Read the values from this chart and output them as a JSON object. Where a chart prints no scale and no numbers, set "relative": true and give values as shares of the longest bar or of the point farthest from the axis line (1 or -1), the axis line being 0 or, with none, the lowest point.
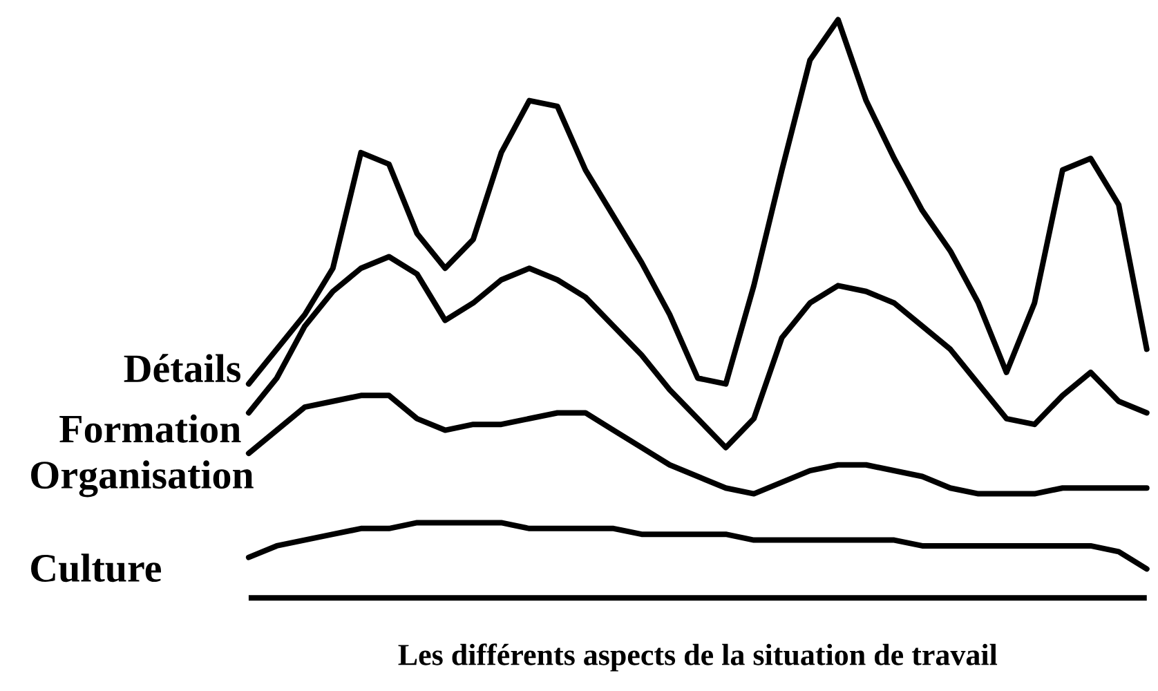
{
  "chart_data": {
    "type": "line",
    "relative": true,
    "xlabel": "Les différents aspects de la situation de travail",
    "categories": [
      null,
      null,
      null,
      null,
      null,
      null,
      null,
      null,
      null,
      null,
      null,
      null,
      null,
      null,
      null,
      null,
      null,
      null,
      null,
      null,
      null,
      null,
      null,
      null,
      null,
      null,
      null,
      null,
      null,
      null,
      null,
      null,
      null
    ],
    "marker": "none",
    "line_style": "solid",
    "series": [
      {
        "name": "Détails",
        "color": "#000000",
        "values": [
          0.37,
          0.43,
          0.49,
          0.57,
          0.77,
          0.75,
          0.63,
          0.57,
          0.62,
          0.77,
          0.86,
          0.85,
          0.74,
          0.66,
          0.58,
          0.49,
          0.38,
          0.37,
          0.54,
          0.74,
          0.93,
          1.0,
          0.86,
          0.76,
          0.67,
          0.6,
          0.51,
          0.39,
          0.51,
          0.74,
          0.76,
          0.68,
          0.43
        ]
      },
      {
        "name": "Formation",
        "color": "#000000",
        "values": [
          0.32,
          0.38,
          0.47,
          0.53,
          0.57,
          0.59,
          0.56,
          0.48,
          0.51,
          0.55,
          0.57,
          0.55,
          0.52,
          0.47,
          0.42,
          0.36,
          0.31,
          0.26,
          0.31,
          0.45,
          0.51,
          0.54,
          0.53,
          0.51,
          0.47,
          0.43,
          0.37,
          0.31,
          0.3,
          0.35,
          0.39,
          0.34,
          0.32
        ]
      },
      {
        "name": "Organisation",
        "color": "#000000",
        "values": [
          0.25,
          0.29,
          0.33,
          0.34,
          0.35,
          0.35,
          0.31,
          0.29,
          0.3,
          0.3,
          0.31,
          0.32,
          0.32,
          0.29,
          0.26,
          0.23,
          0.21,
          0.19,
          0.18,
          0.2,
          0.22,
          0.23,
          0.23,
          0.22,
          0.21,
          0.19,
          0.18,
          0.18,
          0.18,
          0.19,
          0.19,
          0.19,
          0.19
        ]
      },
      {
        "name": "Culture",
        "color": "#000000",
        "values": [
          0.07,
          0.09,
          0.1,
          0.11,
          0.12,
          0.12,
          0.13,
          0.13,
          0.13,
          0.13,
          0.12,
          0.12,
          0.12,
          0.12,
          0.11,
          0.11,
          0.11,
          0.11,
          0.1,
          0.1,
          0.1,
          0.1,
          0.1,
          0.1,
          0.09,
          0.09,
          0.09,
          0.09,
          0.09,
          0.09,
          0.09,
          0.08,
          0.05
        ]
      }
    ]
  }
}
